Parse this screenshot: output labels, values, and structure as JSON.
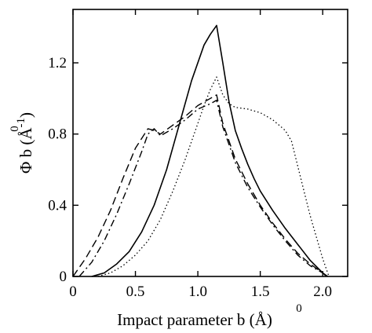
{
  "chart_data": {
    "type": "line",
    "xlabel": "Impact parameter b (Å)",
    "xlabel_parts": {
      "main": "Impact parameter b (",
      "unit": "Å",
      "unit_mark": "0",
      "close": ")"
    },
    "ylabel": "Φ b (Å⁻¹)",
    "ylabel_parts": {
      "main": "Φ b (",
      "unit": "Å",
      "unit_mark": "0",
      "exponent": "-1",
      "close": ")"
    },
    "xlim": [
      0,
      2.2
    ],
    "ylim": [
      0,
      1.5
    ],
    "xticks": [
      0,
      0.5,
      1.0,
      1.5,
      2.0
    ],
    "xtick_labels": [
      "0",
      "0.5",
      "1.0",
      "1.5",
      "2.0"
    ],
    "yticks": [
      0,
      0.4,
      0.8,
      1.2
    ],
    "ytick_labels": [
      "0",
      "0.4",
      "0.8",
      "1.2"
    ],
    "grid": false,
    "series": [
      {
        "style": "solid",
        "x": [
          0.15,
          0.25,
          0.35,
          0.45,
          0.55,
          0.65,
          0.75,
          0.85,
          0.95,
          1.05,
          1.1,
          1.15,
          1.2,
          1.25,
          1.3,
          1.35,
          1.4,
          1.45,
          1.5,
          1.6,
          1.7,
          1.8,
          1.9,
          2.0,
          2.04
        ],
        "y": [
          0.0,
          0.02,
          0.07,
          0.14,
          0.25,
          0.4,
          0.6,
          0.85,
          1.1,
          1.3,
          1.36,
          1.41,
          1.2,
          0.98,
          0.82,
          0.72,
          0.63,
          0.55,
          0.48,
          0.37,
          0.27,
          0.18,
          0.09,
          0.02,
          0.0
        ]
      },
      {
        "style": "dashed",
        "x": [
          0.0,
          0.1,
          0.2,
          0.3,
          0.4,
          0.5,
          0.6,
          0.65,
          0.7,
          0.8,
          0.9,
          1.0,
          1.1,
          1.15,
          1.2,
          1.25,
          1.3,
          1.4,
          1.5,
          1.6,
          1.7,
          1.8,
          1.9,
          2.0,
          2.03
        ],
        "y": [
          0.0,
          0.1,
          0.22,
          0.37,
          0.55,
          0.72,
          0.83,
          0.82,
          0.8,
          0.85,
          0.9,
          0.96,
          1.0,
          1.02,
          0.86,
          0.76,
          0.66,
          0.52,
          0.4,
          0.3,
          0.21,
          0.13,
          0.07,
          0.02,
          0.0
        ]
      },
      {
        "style": "dashdot",
        "x": [
          0.05,
          0.15,
          0.25,
          0.35,
          0.45,
          0.55,
          0.6,
          0.65,
          0.7,
          0.8,
          0.9,
          1.0,
          1.1,
          1.15,
          1.2,
          1.25,
          1.3,
          1.4,
          1.5,
          1.6,
          1.7,
          1.8,
          1.9,
          2.0,
          2.03
        ],
        "y": [
          0.0,
          0.08,
          0.2,
          0.35,
          0.52,
          0.7,
          0.8,
          0.83,
          0.79,
          0.83,
          0.88,
          0.94,
          0.97,
          0.99,
          0.84,
          0.74,
          0.64,
          0.5,
          0.39,
          0.29,
          0.2,
          0.12,
          0.06,
          0.02,
          0.0
        ]
      },
      {
        "style": "dotted",
        "x": [
          0.2,
          0.3,
          0.4,
          0.5,
          0.6,
          0.7,
          0.8,
          0.9,
          1.0,
          1.05,
          1.1,
          1.15,
          1.2,
          1.25,
          1.3,
          1.4,
          1.5,
          1.6,
          1.7,
          1.75,
          1.8,
          1.85,
          1.9,
          1.95,
          2.0,
          2.05
        ],
        "y": [
          0.0,
          0.02,
          0.06,
          0.12,
          0.2,
          0.32,
          0.48,
          0.66,
          0.86,
          0.96,
          1.05,
          1.12,
          1.02,
          0.97,
          0.95,
          0.94,
          0.92,
          0.88,
          0.82,
          0.76,
          0.62,
          0.48,
          0.34,
          0.22,
          0.1,
          0.0
        ]
      }
    ]
  }
}
